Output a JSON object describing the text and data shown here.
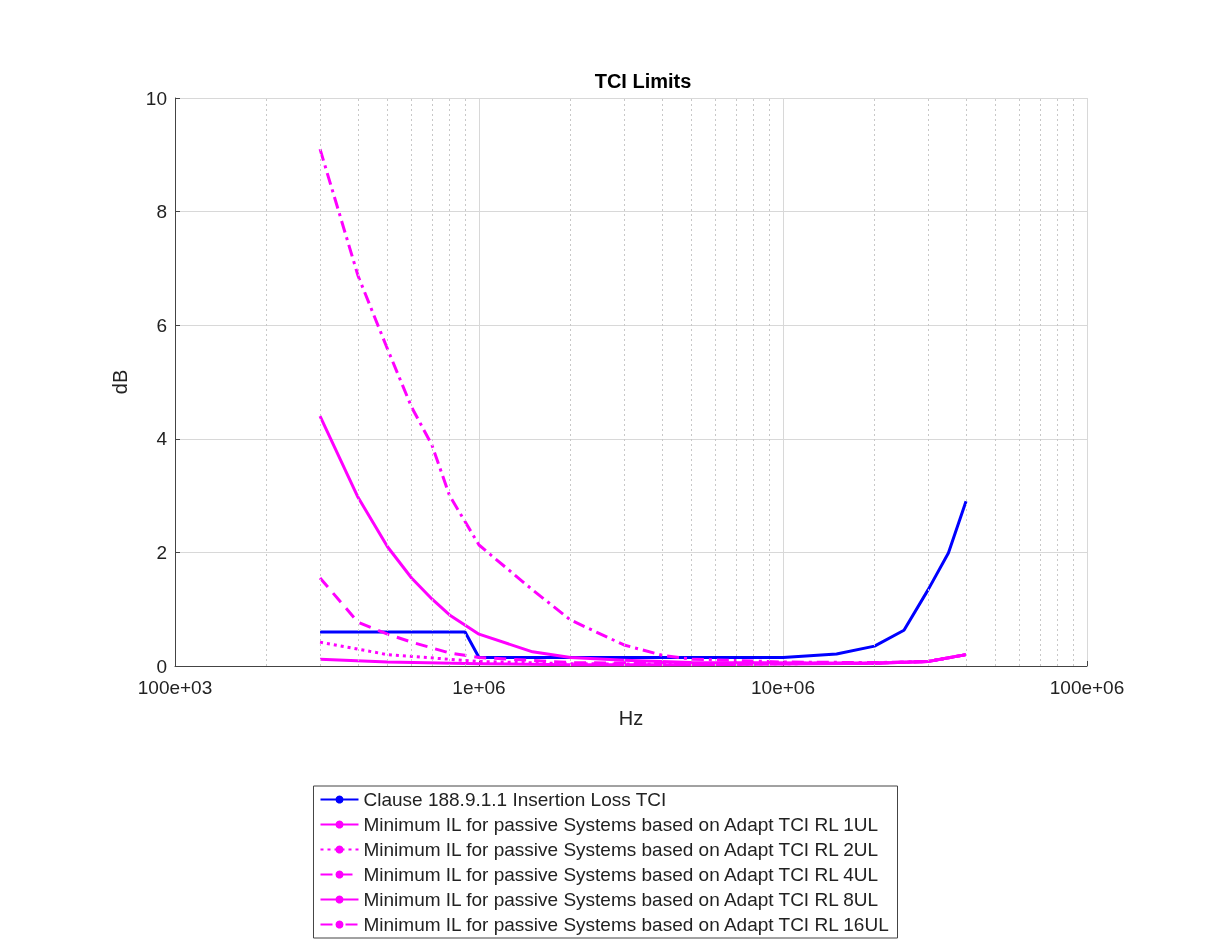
{
  "chart_data": {
    "type": "line",
    "title": "TCI Limits",
    "xlabel": "Hz",
    "ylabel": "dB",
    "log": "x",
    "xlim": [
      100000,
      100000000
    ],
    "xticks": [
      {
        "value": 100000,
        "label": "100e+03"
      },
      {
        "value": 1000000,
        "label": "1e+06"
      },
      {
        "value": 10000000,
        "label": "10e+06"
      },
      {
        "value": 100000000,
        "label": "100e+06"
      }
    ],
    "ylim": [
      0,
      10
    ],
    "yticks": [
      0,
      2,
      4,
      6,
      8,
      10
    ],
    "grid": true,
    "legend": "bottom",
    "marker": "none",
    "series": [
      {
        "name": "Clause 188.9.1.1 Insertion Loss TCI",
        "color": "#0000ff",
        "line_style": "solid",
        "x": [
          300000,
          900000,
          1000000,
          10000000,
          15000000,
          20000000,
          25000000,
          30000000,
          35000000,
          40000000
        ],
        "values": [
          0.6,
          0.6,
          0.15,
          0.15,
          0.21,
          0.35,
          0.63,
          1.34,
          1.99,
          2.9
        ]
      },
      {
        "name": "Minimum IL for passive Systems based on Adapt TCI RL 1UL",
        "color": "#ff00ff",
        "line_style": "solid",
        "x": [
          300000,
          500000,
          1000000,
          2000000,
          5000000,
          20000000,
          30000000,
          40000000
        ],
        "values": [
          0.12,
          0.07,
          0.04,
          0.02,
          0.02,
          0.05,
          0.08,
          0.2
        ]
      },
      {
        "name": "Minimum IL for passive Systems based on Adapt TCI RL 2UL",
        "color": "#ff00ff",
        "line_style": "dotted",
        "x": [
          300000,
          500000,
          1000000,
          2000000,
          5000000,
          20000000,
          30000000,
          40000000
        ],
        "values": [
          0.42,
          0.2,
          0.08,
          0.04,
          0.03,
          0.05,
          0.08,
          0.2
        ]
      },
      {
        "name": "Minimum IL for passive Systems based on Adapt TCI RL 4UL",
        "color": "#ff00ff",
        "line_style": "dashed",
        "x": [
          300000,
          400000,
          500000,
          600000,
          800000,
          1000000,
          2000000,
          5000000,
          20000000,
          30000000,
          40000000
        ],
        "values": [
          1.55,
          0.77,
          0.56,
          0.42,
          0.23,
          0.15,
          0.06,
          0.04,
          0.05,
          0.08,
          0.2
        ]
      },
      {
        "name": "Minimum IL for passive Systems based on Adapt TCI RL 8UL",
        "color": "#ff00ff",
        "line_style": "solid",
        "x": [
          300000,
          400000,
          500000,
          600000,
          700000,
          800000,
          1000000,
          1500000,
          2000000,
          3000000,
          5000000,
          20000000,
          30000000,
          40000000
        ],
        "values": [
          4.4,
          2.97,
          2.1,
          1.55,
          1.18,
          0.9,
          0.56,
          0.25,
          0.15,
          0.1,
          0.06,
          0.05,
          0.08,
          0.2
        ]
      },
      {
        "name": "Minimum IL for passive Systems based on Adapt TCI RL 16UL",
        "color": "#ff00ff",
        "line_style": "dashdot",
        "x": [
          300000,
          400000,
          500000,
          600000,
          700000,
          800000,
          1000000,
          1500000,
          2000000,
          3000000,
          4000000,
          5000000,
          10000000,
          20000000,
          30000000,
          40000000
        ],
        "values": [
          9.1,
          6.87,
          5.58,
          4.56,
          3.89,
          3.0,
          2.13,
          1.34,
          0.81,
          0.37,
          0.19,
          0.12,
          0.07,
          0.06,
          0.08,
          0.2
        ]
      }
    ]
  }
}
